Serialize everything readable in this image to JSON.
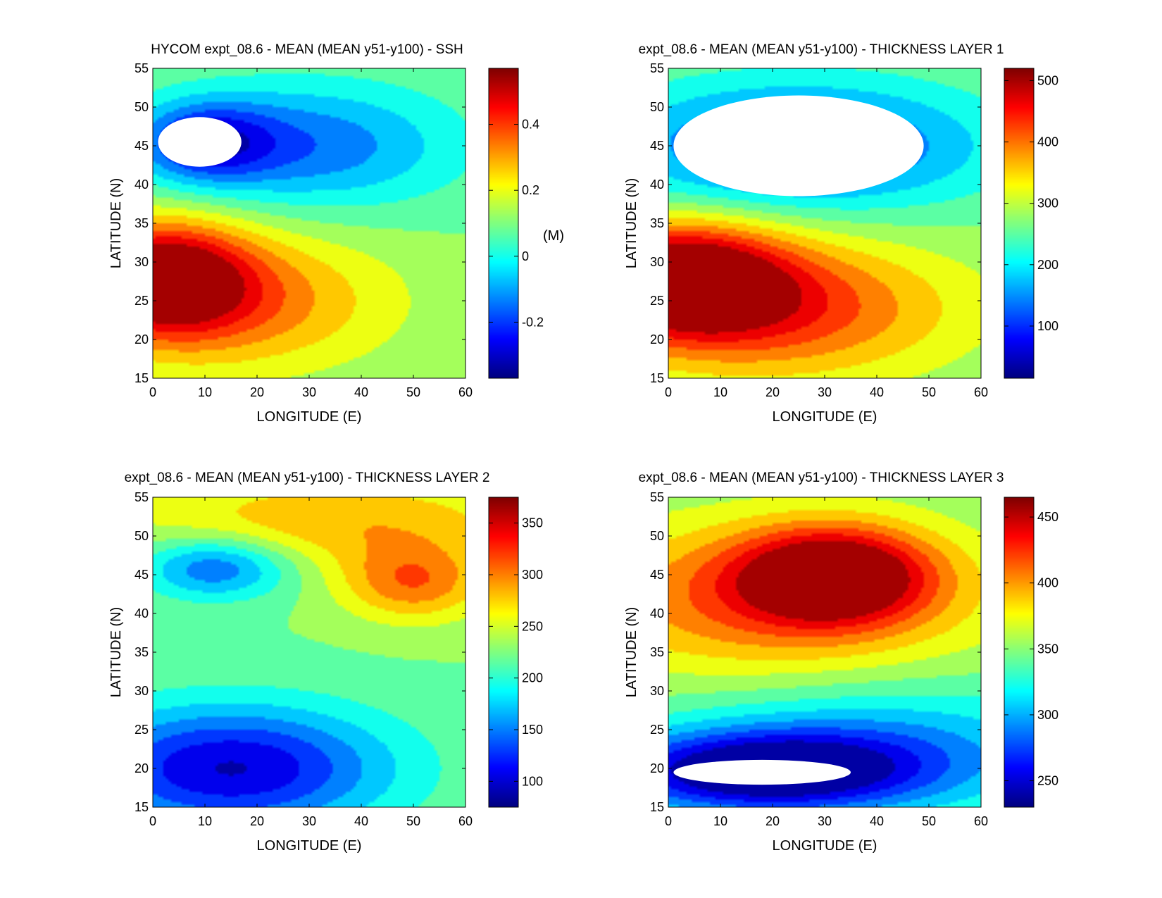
{
  "chart_data": [
    {
      "type": "contour",
      "title": "HYCOM expt_08.6 - MEAN (MEAN y51-y100) - SSH",
      "xlabel": "LONGITUDE (E)",
      "ylabel": "LATITUDE (N)",
      "xlim": [
        0,
        60
      ],
      "ylim": [
        15,
        55
      ],
      "xticks": [
        "0",
        "10",
        "20",
        "30",
        "40",
        "50",
        "60"
      ],
      "yticks": [
        "15",
        "20",
        "25",
        "30",
        "35",
        "40",
        "45",
        "50",
        "55"
      ],
      "colorbar": {
        "range": [
          -0.37,
          0.57
        ],
        "ticks": [
          -0.2,
          0,
          0.2,
          0.4
        ],
        "tick_labels": [
          "-0.2",
          "0",
          "0.2",
          "0.4"
        ],
        "unit_label": "(M)"
      },
      "features": [
        {
          "kind": "low",
          "center": [
            10,
            45.5
          ],
          "spread": [
            13,
            5
          ],
          "amplitude": -0.3
        },
        {
          "kind": "low",
          "center": [
            30,
            45
          ],
          "spread": [
            28,
            8
          ],
          "amplitude": -0.25
        },
        {
          "kind": "high",
          "center": [
            2,
            28
          ],
          "spread": [
            16,
            7
          ],
          "amplitude": 0.45
        },
        {
          "kind": "high",
          "center": [
            15,
            25
          ],
          "spread": [
            30,
            9
          ],
          "amplitude": 0.25
        }
      ],
      "masked_region": {
        "center": [
          9,
          45.5
        ],
        "radius": [
          8,
          3.2
        ]
      },
      "colormap": "jet",
      "grid": false,
      "legend": "none"
    },
    {
      "type": "contour",
      "title": "expt_08.6 - MEAN (MEAN y51-y100) - THICKNESS LAYER 1",
      "xlabel": "LONGITUDE (E)",
      "ylabel": "LATITUDE (N)",
      "xlim": [
        0,
        60
      ],
      "ylim": [
        15,
        55
      ],
      "xticks": [
        "0",
        "10",
        "20",
        "30",
        "40",
        "50",
        "60"
      ],
      "yticks": [
        "15",
        "20",
        "25",
        "30",
        "35",
        "40",
        "45",
        "50",
        "55"
      ],
      "colorbar": {
        "range": [
          15,
          520
        ],
        "ticks": [
          100,
          200,
          300,
          400,
          500
        ],
        "tick_labels": [
          "100",
          "200",
          "300",
          "400",
          "500"
        ],
        "unit_label": ""
      },
      "features": [
        {
          "kind": "low",
          "center": [
            25,
            45
          ],
          "spread": [
            35,
            8
          ],
          "amplitude": -180
        },
        {
          "kind": "high",
          "center": [
            2,
            28
          ],
          "spread": [
            20,
            7
          ],
          "amplitude": 260
        },
        {
          "kind": "high",
          "center": [
            20,
            24
          ],
          "spread": [
            35,
            9
          ],
          "amplitude": 170
        }
      ],
      "masked_region": {
        "center": [
          25,
          45
        ],
        "radius": [
          24,
          6.5
        ]
      },
      "colormap": "jet",
      "grid": false,
      "legend": "none"
    },
    {
      "type": "contour",
      "title": "expt_08.6 - MEAN (MEAN y51-y100) - THICKNESS LAYER 2",
      "xlabel": "LONGITUDE (E)",
      "ylabel": "LATITUDE (N)",
      "xlim": [
        0,
        60
      ],
      "ylim": [
        15,
        55
      ],
      "xticks": [
        "0",
        "10",
        "20",
        "30",
        "40",
        "50",
        "60"
      ],
      "yticks": [
        "15",
        "20",
        "25",
        "30",
        "35",
        "40",
        "45",
        "50",
        "55"
      ],
      "colorbar": {
        "range": [
          75,
          375
        ],
        "ticks": [
          100,
          150,
          200,
          250,
          300,
          350
        ],
        "tick_labels": [
          "100",
          "150",
          "200",
          "250",
          "300",
          "350"
        ],
        "unit_label": ""
      },
      "features": [
        {
          "kind": "high",
          "center": [
            50,
            44
          ],
          "spread": [
            14,
            5
          ],
          "amplitude": 80
        },
        {
          "kind": "high",
          "center": [
            35,
            52
          ],
          "spread": [
            40,
            6
          ],
          "amplitude": 60
        },
        {
          "kind": "low",
          "center": [
            12,
            46
          ],
          "spread": [
            14,
            4
          ],
          "amplitude": -90
        },
        {
          "kind": "low",
          "center": [
            15,
            20
          ],
          "spread": [
            30,
            8
          ],
          "amplitude": -130
        }
      ],
      "masked_region": null,
      "colormap": "jet",
      "grid": false,
      "legend": "none"
    },
    {
      "type": "contour",
      "title": "expt_08.6 - MEAN (MEAN y51-y100) - THICKNESS LAYER 3",
      "xlabel": "LONGITUDE (E)",
      "ylabel": "LATITUDE (N)",
      "xlim": [
        0,
        60
      ],
      "ylim": [
        15,
        55
      ],
      "xticks": [
        "0",
        "10",
        "20",
        "30",
        "40",
        "50",
        "60"
      ],
      "yticks": [
        "15",
        "20",
        "25",
        "30",
        "35",
        "40",
        "45",
        "50",
        "55"
      ],
      "colorbar": {
        "range": [
          230,
          465
        ],
        "ticks": [
          250,
          300,
          350,
          400,
          450
        ],
        "tick_labels": [
          "250",
          "300",
          "350",
          "400",
          "450"
        ],
        "unit_label": ""
      },
      "features": [
        {
          "kind": "high",
          "center": [
            32,
            45
          ],
          "spread": [
            18,
            6
          ],
          "amplitude": 110
        },
        {
          "kind": "high",
          "center": [
            20,
            42
          ],
          "spread": [
            40,
            10
          ],
          "amplitude": 70
        },
        {
          "kind": "low",
          "center": [
            18,
            19.5
          ],
          "spread": [
            30,
            5
          ],
          "amplitude": -120
        },
        {
          "kind": "low",
          "center": [
            40,
            23
          ],
          "spread": [
            40,
            8
          ],
          "amplitude": -50
        }
      ],
      "masked_region": {
        "center": [
          18,
          19.5
        ],
        "radius": [
          17,
          1.6
        ]
      },
      "colormap": "jet",
      "grid": false,
      "legend": "none"
    }
  ]
}
